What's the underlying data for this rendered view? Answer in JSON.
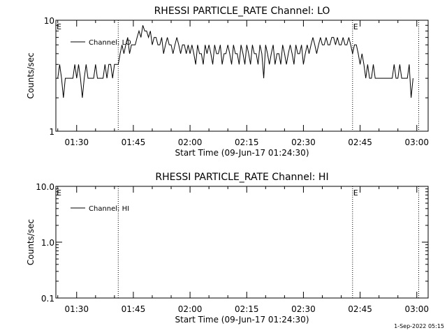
{
  "footer_timestamp": "1-Sep-2022 05:15",
  "chart_data": [
    {
      "type": "line",
      "title": "RHESSI PARTICLE_RATE Channel: LO",
      "xlabel": "Start Time (09-Jun-17 01:24:30)",
      "ylabel": "Counts/sec",
      "yscale": "log",
      "ylim": [
        1,
        10
      ],
      "yticks": [
        1,
        10
      ],
      "ytick_labels": [
        "1",
        "10"
      ],
      "xlim_minutes": [
        84.5,
        183.0
      ],
      "xticks": [
        90,
        105,
        120,
        135,
        150,
        165,
        180
      ],
      "xtick_labels": [
        "01:30",
        "01:45",
        "02:00",
        "02:15",
        "02:30",
        "02:45",
        "03:00"
      ],
      "legend": {
        "position": "top-left",
        "entries": [
          "Channel: LO"
        ]
      },
      "event_markers": [
        {
          "x": 84.5,
          "label": "E"
        },
        {
          "x": 101.0,
          "label": ""
        },
        {
          "x": 163.0,
          "label": "E"
        },
        {
          "x": 180.5,
          "label": ""
        }
      ],
      "series": [
        {
          "name": "Channel: LO",
          "x": [
            85.0,
            85.5,
            86.0,
            86.5,
            87.0,
            87.5,
            88.0,
            88.5,
            89.0,
            89.5,
            90.0,
            90.5,
            91.0,
            91.5,
            92.0,
            92.5,
            93.0,
            93.5,
            94.0,
            94.5,
            95.0,
            95.5,
            96.0,
            96.5,
            97.0,
            97.5,
            98.0,
            98.5,
            99.0,
            99.5,
            100.0,
            100.5,
            101.0,
            101.5,
            102.0,
            102.5,
            103.0,
            103.5,
            104.0,
            104.5,
            105.0,
            105.5,
            106.0,
            106.5,
            107.0,
            107.5,
            108.0,
            108.5,
            109.0,
            109.5,
            110.0,
            110.5,
            111.0,
            111.5,
            112.0,
            112.5,
            113.0,
            113.5,
            114.0,
            114.5,
            115.0,
            115.5,
            116.0,
            116.5,
            117.0,
            117.5,
            118.0,
            118.5,
            119.0,
            119.5,
            120.0,
            120.5,
            121.0,
            121.5,
            122.0,
            122.5,
            123.0,
            123.5,
            124.0,
            124.5,
            125.0,
            125.5,
            126.0,
            126.5,
            127.0,
            127.5,
            128.0,
            128.5,
            129.0,
            129.5,
            130.0,
            130.5,
            131.0,
            131.5,
            132.0,
            132.5,
            133.0,
            133.5,
            134.0,
            134.5,
            135.0,
            135.5,
            136.0,
            136.5,
            137.0,
            137.5,
            138.0,
            138.5,
            139.0,
            139.5,
            140.0,
            140.5,
            141.0,
            141.5,
            142.0,
            142.5,
            143.0,
            143.5,
            144.0,
            144.5,
            145.0,
            145.5,
            146.0,
            146.5,
            147.0,
            147.5,
            148.0,
            148.5,
            149.0,
            149.5,
            150.0,
            150.5,
            151.0,
            151.5,
            152.0,
            152.5,
            153.0,
            153.5,
            154.0,
            154.5,
            155.0,
            155.5,
            156.0,
            156.5,
            157.0,
            157.5,
            158.0,
            158.5,
            159.0,
            159.5,
            160.0,
            160.5,
            161.0,
            161.5,
            162.0,
            162.5,
            163.0,
            163.5,
            164.0,
            164.5,
            165.0,
            165.5,
            166.0,
            166.5,
            167.0,
            167.5,
            168.0,
            168.5,
            169.0,
            169.5,
            170.0,
            170.5,
            171.0,
            171.5,
            172.0,
            172.5,
            173.0,
            173.5,
            174.0,
            174.5,
            175.0,
            175.5,
            176.0,
            176.5,
            177.0,
            177.5,
            178.0,
            178.5,
            179.0
          ],
          "values": [
            3,
            4,
            3,
            2,
            3,
            3,
            3,
            3,
            3,
            4,
            3,
            4,
            3,
            2,
            3,
            4,
            3,
            3,
            3,
            3,
            4,
            3,
            3,
            3,
            3,
            4,
            3,
            4,
            4,
            3,
            4,
            4,
            4,
            5,
            6,
            5,
            6,
            7,
            5,
            6,
            6,
            6,
            7,
            8,
            7,
            9,
            8,
            8,
            7,
            8,
            6,
            7,
            7,
            6,
            6,
            7,
            5,
            6,
            7,
            6,
            6,
            5,
            6,
            7,
            6,
            5,
            6,
            6,
            5,
            6,
            5,
            6,
            5,
            4,
            6,
            5,
            5,
            4,
            6,
            5,
            6,
            5,
            4,
            6,
            5,
            5,
            6,
            4,
            5,
            5,
            6,
            5,
            4,
            6,
            5,
            5,
            4,
            6,
            5,
            4,
            6,
            5,
            4,
            6,
            5,
            5,
            4,
            6,
            5,
            3,
            6,
            5,
            4,
            5,
            6,
            4,
            5,
            5,
            4,
            6,
            5,
            4,
            5,
            6,
            5,
            4,
            6,
            5,
            5,
            6,
            4,
            5,
            6,
            5,
            6,
            7,
            6,
            5,
            6,
            7,
            6,
            6,
            7,
            6,
            6,
            7,
            7,
            6,
            7,
            6,
            6,
            7,
            6,
            6,
            7,
            6,
            5,
            6,
            6,
            5,
            4,
            5,
            4,
            3,
            4,
            3,
            3,
            4,
            3,
            3,
            3,
            3,
            3,
            3,
            3,
            3,
            3,
            3,
            4,
            3,
            3,
            4,
            3,
            3,
            3,
            3,
            4,
            2,
            3
          ]
        }
      ]
    },
    {
      "type": "line",
      "title": "RHESSI PARTICLE_RATE Channel: HI",
      "xlabel": "Start Time (09-Jun-17 01:24:30)",
      "ylabel": "Counts/sec",
      "yscale": "log",
      "ylim": [
        0.1,
        10.0
      ],
      "yticks": [
        0.1,
        1.0,
        10.0
      ],
      "ytick_labels": [
        "0.1",
        "1.0",
        "10.0"
      ],
      "xlim_minutes": [
        84.5,
        183.0
      ],
      "xticks": [
        90,
        105,
        120,
        135,
        150,
        165,
        180
      ],
      "xtick_labels": [
        "01:30",
        "01:45",
        "02:00",
        "02:15",
        "02:30",
        "02:45",
        "03:00"
      ],
      "legend": {
        "position": "top-left",
        "entries": [
          "Channel: HI"
        ]
      },
      "event_markers": [
        {
          "x": 84.5,
          "label": "E"
        },
        {
          "x": 101.0,
          "label": ""
        },
        {
          "x": 163.0,
          "label": "E"
        },
        {
          "x": 180.5,
          "label": ""
        }
      ],
      "series": [
        {
          "name": "Channel: HI",
          "x": [],
          "values": []
        }
      ]
    }
  ]
}
